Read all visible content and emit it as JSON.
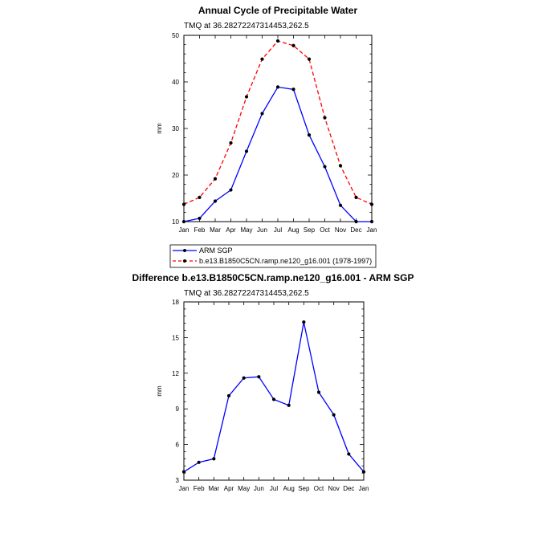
{
  "chart_data": [
    {
      "type": "line",
      "title": "Annual Cycle of Precipitable Water",
      "subtitle": "TMQ at 36.28272247314453,262.5",
      "xlabel": "",
      "ylabel": "mm",
      "categories": [
        "Jan",
        "Feb",
        "Mar",
        "Apr",
        "May",
        "Jun",
        "Jul",
        "Aug",
        "Sep",
        "Oct",
        "Nov",
        "Dec",
        "Jan"
      ],
      "ylim": [
        10,
        50
      ],
      "yticks": [
        10,
        20,
        30,
        40,
        50
      ],
      "series": [
        {
          "name": "ARM SGP",
          "color": "#0000ff",
          "dash": "solid",
          "values": [
            10.0,
            10.7,
            14.4,
            16.8,
            25.1,
            33.2,
            38.9,
            38.4,
            28.6,
            21.8,
            13.5,
            10.0,
            10.0
          ]
        },
        {
          "name": "b.e13.B1850C5CN.ramp.ne120_g16.001 (1978-1997)",
          "color": "#ff0000",
          "dash": "dashed",
          "values": [
            13.7,
            15.2,
            19.2,
            26.9,
            36.8,
            44.9,
            48.8,
            47.8,
            44.9,
            32.3,
            22.0,
            15.2,
            13.7
          ]
        }
      ],
      "legend": "bottom"
    },
    {
      "type": "line",
      "title": "Difference b.e13.B1850C5CN.ramp.ne120_g16.001 - ARM SGP",
      "subtitle": "TMQ at 36.28272247314453,262.5",
      "xlabel": "",
      "ylabel": "mm",
      "categories": [
        "Jan",
        "Feb",
        "Mar",
        "Apr",
        "May",
        "Jun",
        "Jul",
        "Aug",
        "Sep",
        "Oct",
        "Nov",
        "Dec",
        "Jan"
      ],
      "ylim": [
        3,
        18
      ],
      "yticks": [
        3,
        6,
        9,
        12,
        15,
        18
      ],
      "series": [
        {
          "color": "#0000ff",
          "dash": "solid",
          "values": [
            3.7,
            4.5,
            4.8,
            10.1,
            11.6,
            11.7,
            9.8,
            9.3,
            16.3,
            10.4,
            8.5,
            5.2,
            3.7
          ]
        }
      ]
    }
  ]
}
